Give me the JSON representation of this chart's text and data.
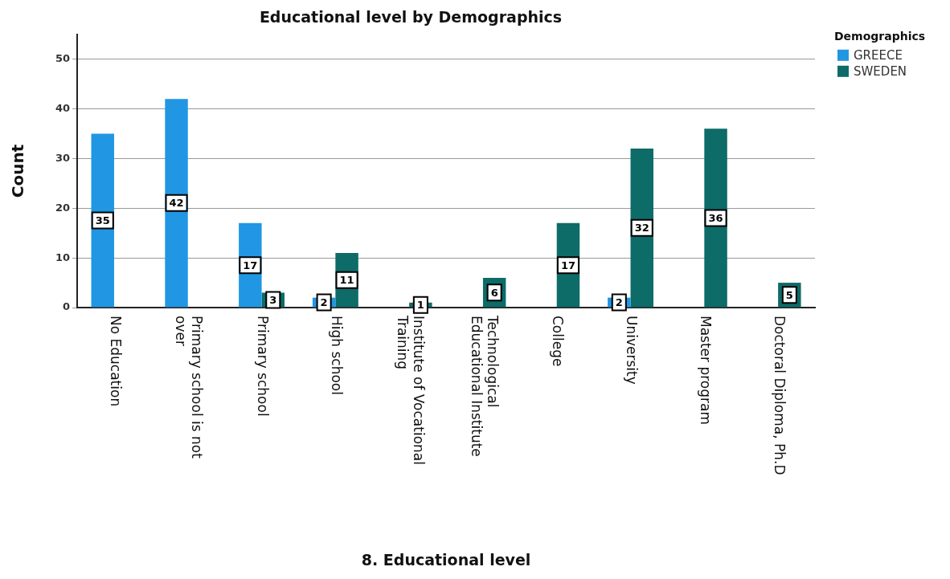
{
  "chart_data": {
    "type": "bar",
    "title": "Educational level by Demographics",
    "xlabel": "8. Educational level",
    "ylabel": "Count",
    "legend_title": "Demographics",
    "categories": [
      "No Education",
      "Primary school is not over",
      "Primary school",
      "High school",
      "Institute of Vocational Training",
      "Technological Educational Institute",
      "College",
      "University",
      "Master program",
      "Doctoral Diploma, Ph.D"
    ],
    "series": [
      {
        "name": "GREECE",
        "color": "#2196e3",
        "values": [
          35,
          42,
          17,
          2,
          null,
          null,
          null,
          2,
          null,
          null
        ]
      },
      {
        "name": "SWEDEN",
        "color": "#0d6b68",
        "values": [
          null,
          null,
          3,
          11,
          1,
          6,
          17,
          32,
          36,
          5
        ]
      }
    ],
    "ylim": [
      0,
      55
    ],
    "yticks": [
      0,
      10,
      20,
      30,
      40,
      50
    ],
    "grid": "y",
    "legend": "top right",
    "data_labels": true
  }
}
